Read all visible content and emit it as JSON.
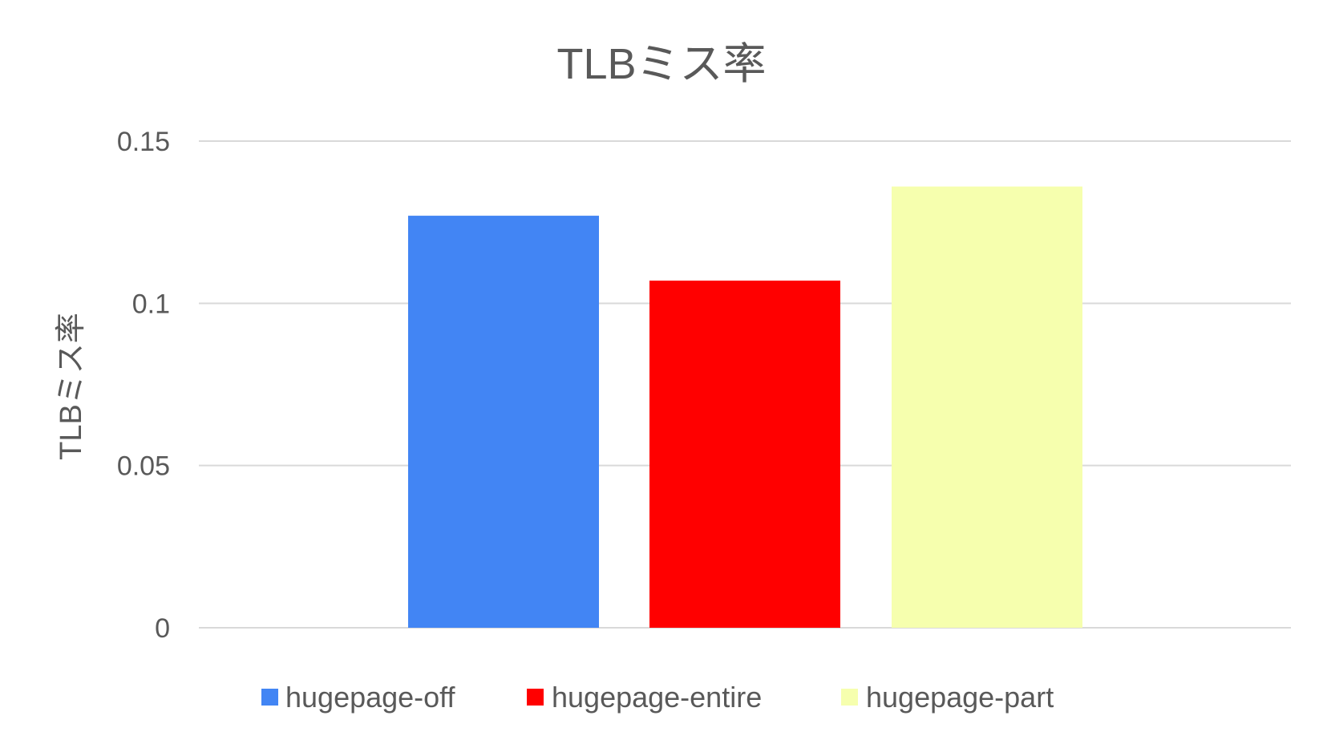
{
  "chart_data": {
    "type": "bar",
    "title": "TLBミス率",
    "xlabel": "",
    "ylabel": "TLBミス率",
    "ylim": [
      0,
      0.15
    ],
    "yticks": [
      "0",
      "0.05",
      "0.1",
      "0.15"
    ],
    "grid": true,
    "legend_position": "bottom",
    "categories": [
      ""
    ],
    "series": [
      {
        "name": "hugepage-off",
        "values": [
          0.127
        ],
        "color": "#4285f4"
      },
      {
        "name": "hugepage-entire",
        "values": [
          0.107
        ],
        "color": "#ff0000"
      },
      {
        "name": "hugepage-part",
        "values": [
          0.136
        ],
        "color": "#f6ffae"
      }
    ]
  }
}
